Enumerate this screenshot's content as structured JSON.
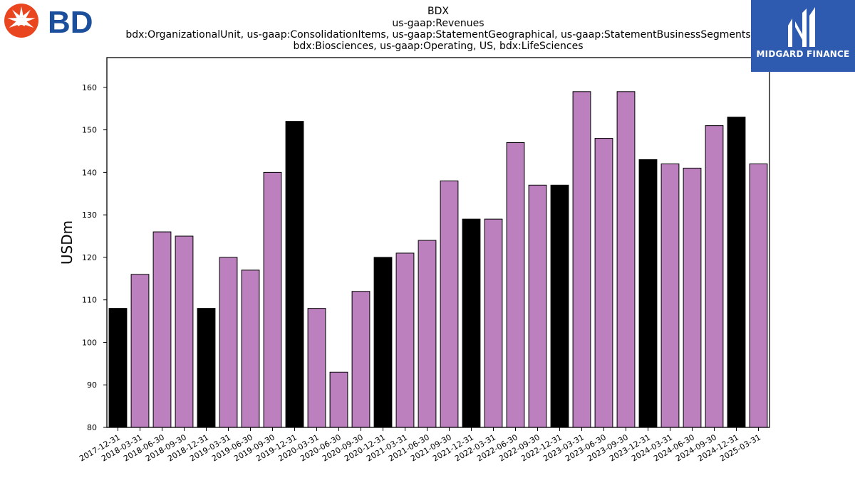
{
  "logos": {
    "left_logo_text": "BD",
    "right_logo_text": "MIDGARD FINANCE"
  },
  "colors": {
    "bar_primary": "#000000",
    "bar_secondary": "#bb80bd",
    "bd_red": "#e9461f",
    "bd_blue": "#1b4f9c",
    "midgard_blue": "#2e5bb0"
  },
  "chart_data": {
    "type": "bar",
    "title_lines": [
      "BDX",
      "us-gaap:Revenues",
      "bdx:OrganizationalUnit, us-gaap:ConsolidationItems, us-gaap:StatementGeographical, us-gaap:StatementBusinessSegments",
      "bdx:Biosciences, us-gaap:Operating, US, bdx:LifeSciences"
    ],
    "xlabel": "",
    "ylabel": "USDm",
    "ylim": [
      80,
      167
    ],
    "yticks": [
      80,
      90,
      100,
      110,
      120,
      130,
      140,
      150,
      160
    ],
    "grid": false,
    "categories": [
      "2017-12-31",
      "2018-03-31",
      "2018-06-30",
      "2018-09-30",
      "2018-12-31",
      "2019-03-31",
      "2019-06-30",
      "2019-09-30",
      "2019-12-31",
      "2020-03-31",
      "2020-06-30",
      "2020-09-30",
      "2020-12-31",
      "2021-03-31",
      "2021-06-30",
      "2021-09-30",
      "2021-12-31",
      "2022-03-31",
      "2022-06-30",
      "2022-09-30",
      "2022-12-31",
      "2023-03-31",
      "2023-06-30",
      "2023-09-30",
      "2023-12-31",
      "2024-03-31",
      "2024-06-30",
      "2024-09-30",
      "2024-12-31",
      "2025-03-31"
    ],
    "values": [
      108,
      116,
      126,
      125,
      108,
      120,
      117,
      140,
      152,
      108,
      93,
      112,
      120,
      121,
      124,
      138,
      129,
      129,
      147,
      137,
      137,
      159,
      148,
      159,
      143,
      142,
      141,
      151,
      153,
      142
    ],
    "bar_colors": [
      "#000000",
      "#bb80bd",
      "#bb80bd",
      "#bb80bd",
      "#000000",
      "#bb80bd",
      "#bb80bd",
      "#bb80bd",
      "#000000",
      "#bb80bd",
      "#bb80bd",
      "#bb80bd",
      "#000000",
      "#bb80bd",
      "#bb80bd",
      "#bb80bd",
      "#000000",
      "#bb80bd",
      "#bb80bd",
      "#bb80bd",
      "#000000",
      "#bb80bd",
      "#bb80bd",
      "#bb80bd",
      "#000000",
      "#bb80bd",
      "#bb80bd",
      "#bb80bd",
      "#000000",
      "#bb80bd"
    ]
  }
}
